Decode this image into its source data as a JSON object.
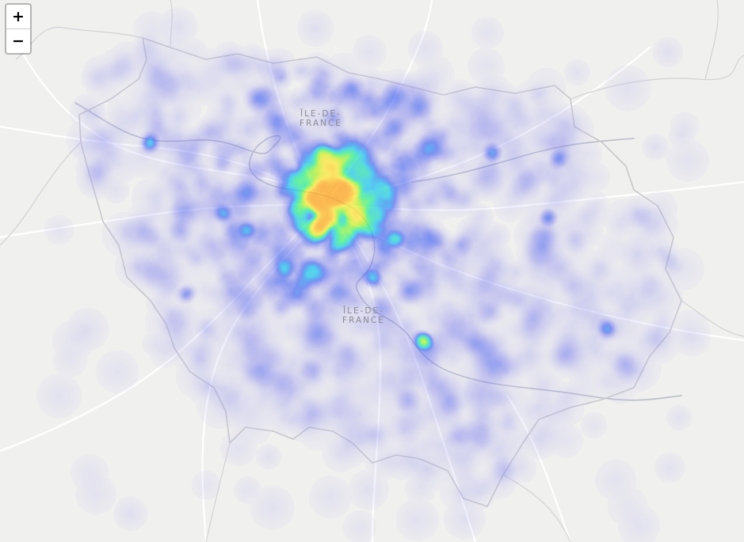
{
  "map": {
    "zoom_in_label": "+",
    "zoom_out_label": "−",
    "region_labels": [
      {
        "line1": "ÎLE-DE-",
        "line2": "FRANCE"
      },
      {
        "line1": "ÎLE-DE-",
        "line2": "FRANCE"
      }
    ],
    "colors": {
      "background": "#f0f0ee",
      "roads": "#ffffff",
      "borders": "#c8c8cc",
      "rivers": "#b9bcc9",
      "heat_gradient": [
        "#c9c6f5",
        "#7f7ef0",
        "#3f5ff2",
        "#22c7f0",
        "#34f28a",
        "#b8f22a",
        "#ffe83a",
        "#ff9f1a"
      ]
    },
    "layer": "heatmap"
  }
}
